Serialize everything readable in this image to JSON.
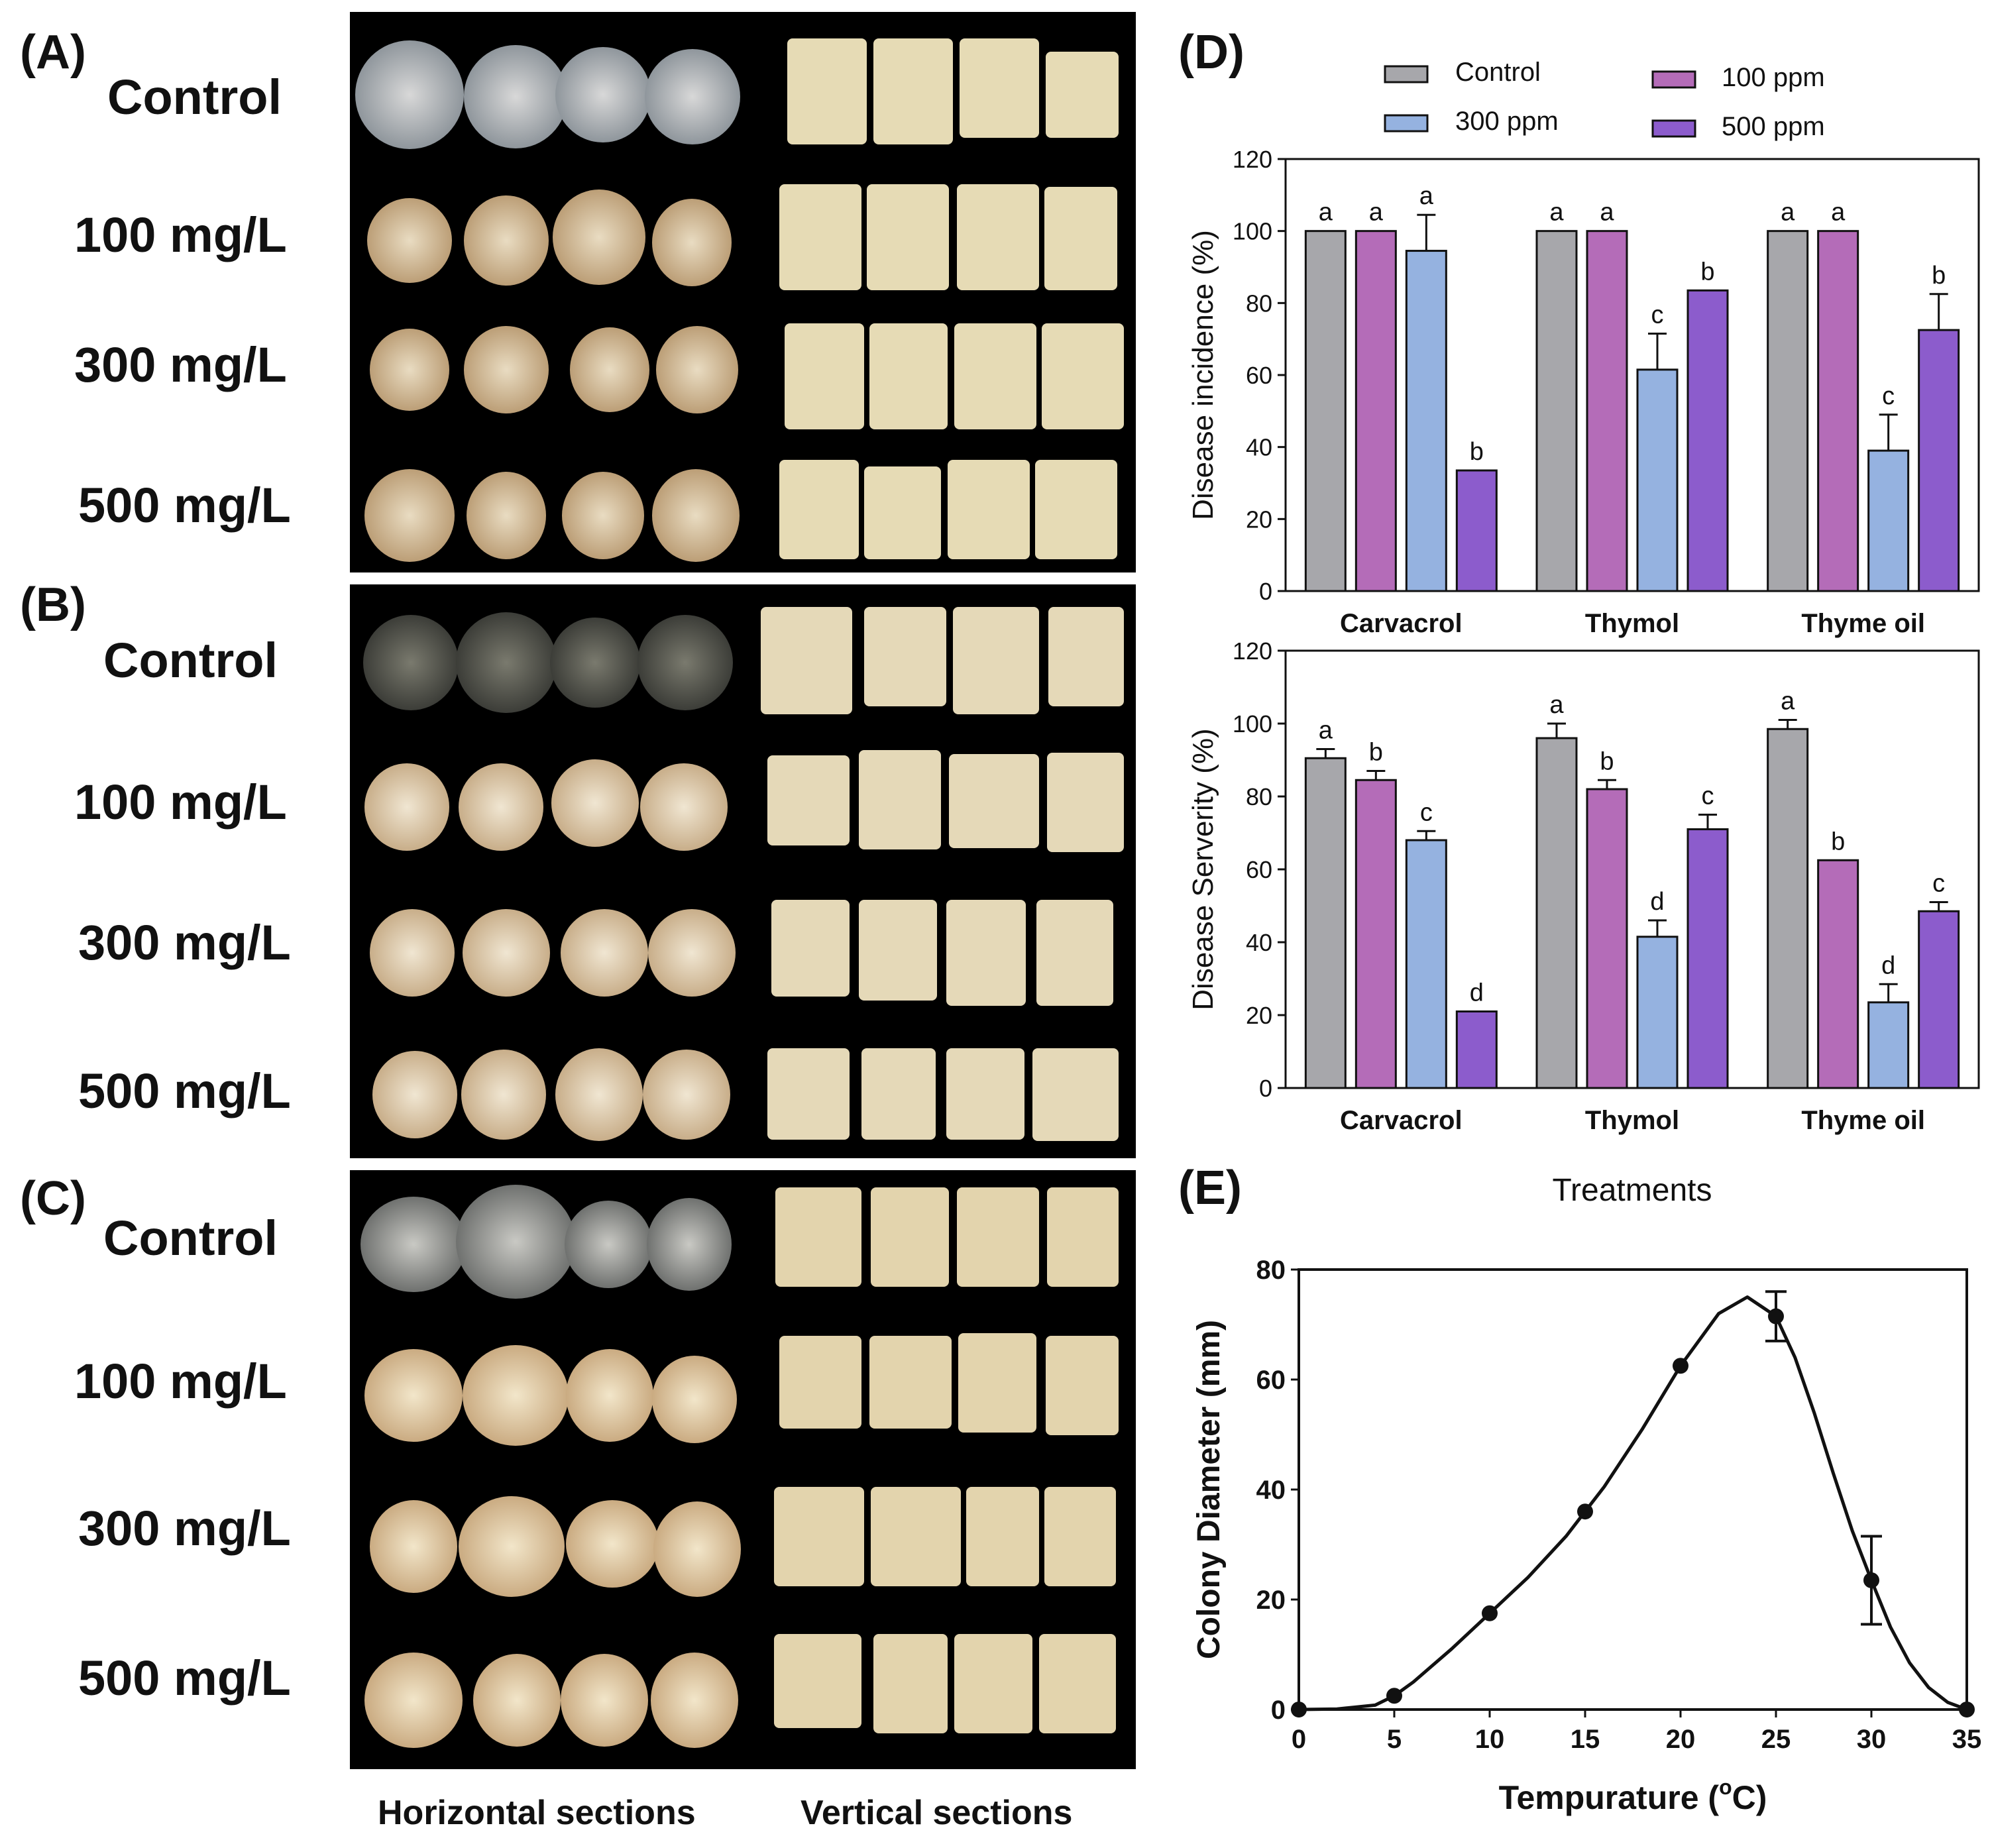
{
  "panels": {
    "A": {
      "label": "(A)",
      "rows": [
        "Control",
        "100 mg/L",
        "300 mg/L",
        "500 mg/L"
      ]
    },
    "B": {
      "label": "(B)",
      "rows": [
        "Control",
        "100 mg/L",
        "300 mg/L",
        "500 mg/L"
      ]
    },
    "C": {
      "label": "(C)",
      "rows": [
        "Control",
        "100 mg/L",
        "300 mg/L",
        "500 mg/L"
      ]
    },
    "D": {
      "label": "(D)"
    },
    "E": {
      "label": "(E)"
    }
  },
  "photo_axis": {
    "horizontal": "Horizontal sections",
    "vertical": "Vertical sections"
  },
  "colors": {
    "control": "#a7a7ab",
    "ppm100": "#b46cb8",
    "ppm300": "#95b2e0",
    "ppm500": "#8c5ccc",
    "photo_bg": "#000000"
  },
  "chart_data": [
    {
      "type": "bar",
      "legend": [
        "Control",
        "300 ppm",
        "100 ppm",
        "500 ppm"
      ],
      "categories": [
        "Carvacrol",
        "Thymol",
        "Thyme oil"
      ],
      "series": [
        {
          "name": "Control",
          "values": [
            100,
            100,
            100
          ],
          "err": [
            0,
            0,
            0
          ],
          "letters": [
            "a",
            "a",
            "a"
          ]
        },
        {
          "name": "100 ppm",
          "values": [
            100,
            100,
            100
          ],
          "err": [
            0,
            0,
            0
          ],
          "letters": [
            "a",
            "a",
            "a"
          ]
        },
        {
          "name": "300 ppm",
          "values": [
            94.5,
            61.5,
            39
          ],
          "err": [
            10,
            10,
            10
          ],
          "letters": [
            "a",
            "c",
            "c"
          ]
        },
        {
          "name": "500 ppm",
          "values": [
            33.5,
            83.5,
            72.5
          ],
          "err": [
            0,
            0,
            10
          ],
          "letters": [
            "b",
            "b",
            "b"
          ]
        }
      ],
      "ylabel": "Disease incidence (%)",
      "ylim": [
        0,
        120
      ],
      "yticks": [
        "0",
        "20",
        "40",
        "60",
        "80",
        "100",
        "120"
      ]
    },
    {
      "type": "bar",
      "categories": [
        "Carvacrol",
        "Thymol",
        "Thyme oil"
      ],
      "series": [
        {
          "name": "Control",
          "values": [
            90.5,
            96,
            98.5
          ],
          "err": [
            2.5,
            4,
            2.5
          ],
          "letters": [
            "a",
            "a",
            "a"
          ]
        },
        {
          "name": "100 ppm",
          "values": [
            84.5,
            82,
            62.5
          ],
          "err": [
            2.5,
            2.5,
            0
          ],
          "letters": [
            "b",
            "b",
            "b"
          ]
        },
        {
          "name": "300 ppm",
          "values": [
            68,
            41.5,
            23.5
          ],
          "err": [
            2.5,
            4.5,
            5
          ],
          "letters": [
            "c",
            "d",
            "d"
          ]
        },
        {
          "name": "500 ppm",
          "values": [
            21,
            71,
            48.5
          ],
          "err": [
            0,
            4,
            2.5
          ],
          "letters": [
            "d",
            "c",
            "c"
          ]
        }
      ],
      "ylabel": "Disease Serverity (%)",
      "xlabel": "Treatments",
      "ylim": [
        0,
        120
      ],
      "yticks": [
        "0",
        "20",
        "40",
        "60",
        "80",
        "100",
        "120"
      ]
    },
    {
      "type": "line",
      "x": [
        0,
        5,
        10,
        15,
        20,
        25,
        30,
        35
      ],
      "y": [
        0,
        2.5,
        17.5,
        36,
        62.5,
        71.5,
        23.5,
        0
      ],
      "err": [
        0,
        0,
        0,
        0,
        0,
        4.5,
        8,
        0
      ],
      "curve_x": [
        0,
        2,
        4,
        5,
        6,
        8,
        10,
        12,
        14,
        15,
        16,
        18,
        20,
        22,
        23.5,
        25,
        26,
        27,
        28,
        29,
        30,
        31,
        32,
        33,
        34,
        35
      ],
      "curve_y": [
        0,
        0.1,
        0.8,
        2.5,
        5,
        11,
        17.5,
        24,
        31.5,
        36,
        40.5,
        51,
        62.5,
        72,
        75,
        71.5,
        64,
        54,
        43,
        32.5,
        23.5,
        15,
        8.5,
        4,
        1.3,
        0
      ],
      "xlabel": "Tempurature (",
      "xlabel_unit": "C)",
      "xlabel_sup": "o",
      "ylabel": "Colony Diameter (mm)",
      "xlim": [
        0,
        35
      ],
      "ylim": [
        0,
        80
      ],
      "xticks": [
        "0",
        "5",
        "10",
        "15",
        "20",
        "25",
        "30",
        "35"
      ],
      "yticks": [
        "0",
        "20",
        "40",
        "60",
        "80"
      ]
    }
  ]
}
